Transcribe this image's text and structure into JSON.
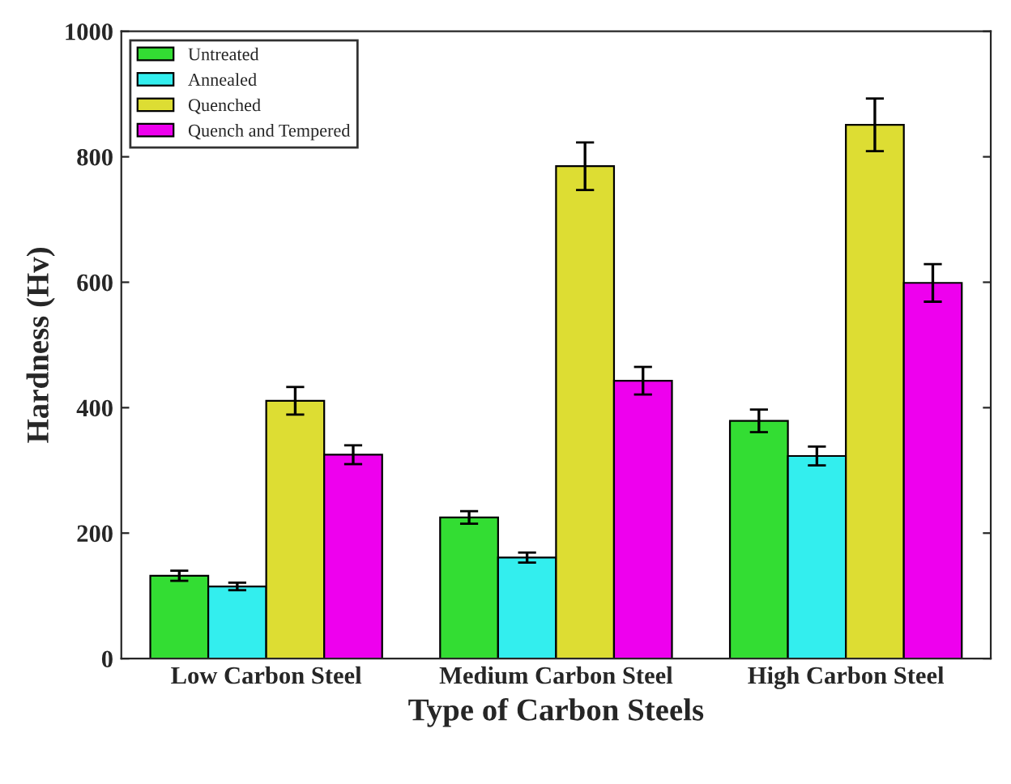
{
  "chart_data": {
    "type": "bar",
    "xlabel": "Type of Carbon Steels",
    "ylabel": "Hardness (Hv)",
    "categories": [
      "Low Carbon Steel",
      "Medium Carbon Steel",
      "High Carbon Steel"
    ],
    "series": [
      {
        "name": "Untreated",
        "color": "#33dd33",
        "values": [
          132,
          225,
          379
        ],
        "errors": [
          8,
          10,
          18
        ]
      },
      {
        "name": "Annealed",
        "color": "#33eeee",
        "values": [
          115,
          161,
          323
        ],
        "errors": [
          6,
          8,
          15
        ]
      },
      {
        "name": "Quenched",
        "color": "#dddd33",
        "values": [
          411,
          785,
          851
        ],
        "errors": [
          22,
          38,
          42
        ]
      },
      {
        "name": "Quench and Tempered",
        "color": "#ee00ee",
        "values": [
          325,
          443,
          599
        ],
        "errors": [
          15,
          22,
          30
        ]
      }
    ],
    "ylim": [
      0,
      1000
    ],
    "yticks": [
      0,
      200,
      400,
      600,
      800,
      1000
    ],
    "grid": false,
    "legend": "top left"
  }
}
